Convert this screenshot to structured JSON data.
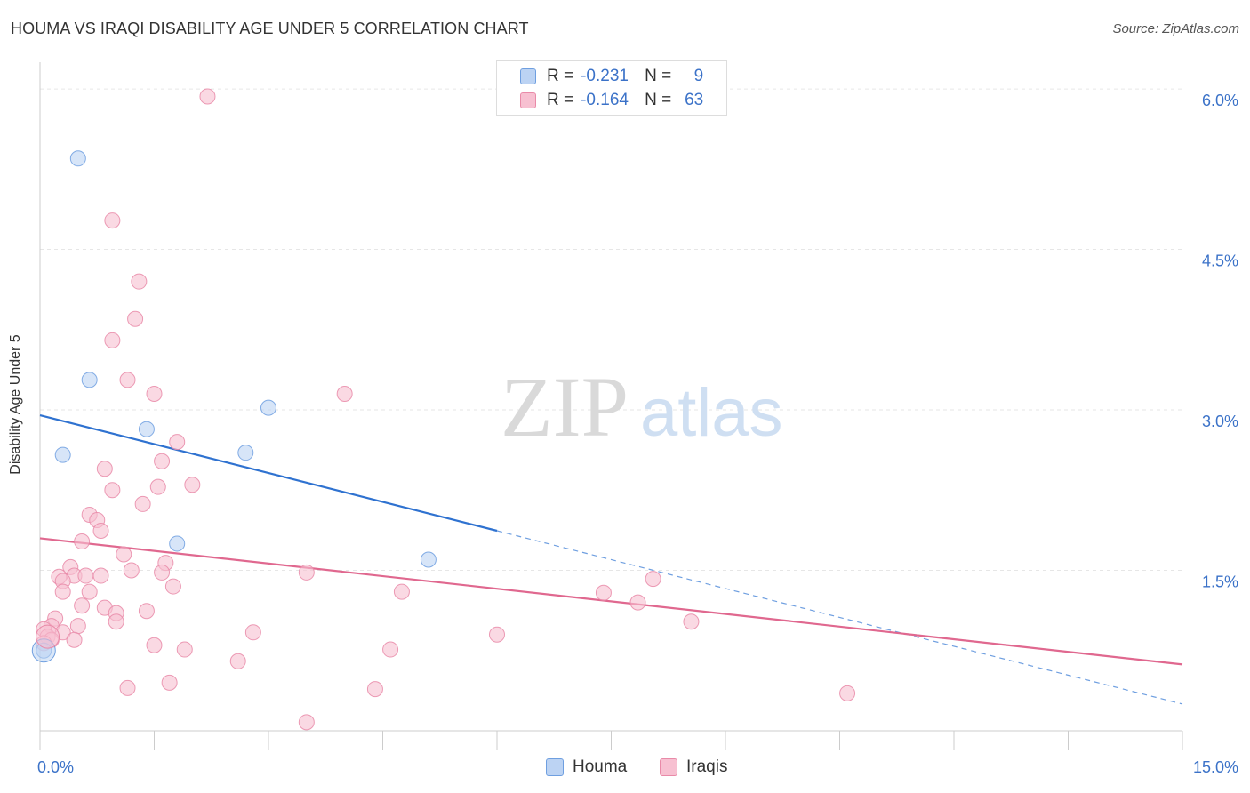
{
  "title": "HOUMA VS IRAQI DISABILITY AGE UNDER 5 CORRELATION CHART",
  "source": "Source: ZipAtlas.com",
  "watermark": {
    "zip": "ZIP",
    "atlas": "atlas"
  },
  "chart_data": {
    "type": "scatter",
    "ylabel": "Disability Age Under 5",
    "xlim": [
      0,
      15
    ],
    "ylim": [
      0,
      6.25
    ],
    "x_tick_labels": [
      "0.0%",
      "15.0%"
    ],
    "y_ticks": [
      {
        "value": 1.5,
        "label": "1.5%"
      },
      {
        "value": 3.0,
        "label": "3.0%"
      },
      {
        "value": 4.5,
        "label": "4.5%"
      },
      {
        "value": 6.0,
        "label": "6.0%"
      }
    ],
    "grid": true,
    "legend": [
      {
        "name": "Houma",
        "color": "#6f9fe0",
        "fill": "#bcd3f3",
        "r_label": "R =",
        "r": "-0.231",
        "n_label": "N =",
        "n": "9"
      },
      {
        "name": "Iraqis",
        "color": "#e98aa8",
        "fill": "#f7c0d1",
        "r_label": "R =",
        "r": "-0.164",
        "n_label": "N =",
        "n": "63"
      }
    ],
    "series": [
      {
        "name": "Houma",
        "points": [
          [
            0.5,
            5.35
          ],
          [
            0.65,
            3.28
          ],
          [
            0.3,
            2.58
          ],
          [
            1.4,
            2.82
          ],
          [
            3.0,
            3.02
          ],
          [
            2.7,
            2.6
          ],
          [
            1.8,
            1.75
          ],
          [
            5.1,
            1.6
          ],
          [
            0.05,
            0.75
          ]
        ],
        "trend": {
          "x0": 0,
          "y0": 2.95,
          "x1": 15,
          "y1": 0.25,
          "solid_until": 6
        }
      },
      {
        "name": "Iraqis",
        "points": [
          [
            2.2,
            5.93
          ],
          [
            0.95,
            4.77
          ],
          [
            1.3,
            4.2
          ],
          [
            1.25,
            3.85
          ],
          [
            0.95,
            3.65
          ],
          [
            1.15,
            3.28
          ],
          [
            1.5,
            3.15
          ],
          [
            4.0,
            3.15
          ],
          [
            1.8,
            2.7
          ],
          [
            1.6,
            2.52
          ],
          [
            0.85,
            2.45
          ],
          [
            2.0,
            2.3
          ],
          [
            1.55,
            2.28
          ],
          [
            0.95,
            2.25
          ],
          [
            1.35,
            2.12
          ],
          [
            0.65,
            2.02
          ],
          [
            0.75,
            1.97
          ],
          [
            0.8,
            1.87
          ],
          [
            0.55,
            1.77
          ],
          [
            1.1,
            1.65
          ],
          [
            0.4,
            1.53
          ],
          [
            1.65,
            1.57
          ],
          [
            1.2,
            1.5
          ],
          [
            1.6,
            1.48
          ],
          [
            3.5,
            1.48
          ],
          [
            0.25,
            1.44
          ],
          [
            0.45,
            1.45
          ],
          [
            0.6,
            1.45
          ],
          [
            0.8,
            1.45
          ],
          [
            0.3,
            1.4
          ],
          [
            1.75,
            1.35
          ],
          [
            0.3,
            1.3
          ],
          [
            0.65,
            1.3
          ],
          [
            4.75,
            1.3
          ],
          [
            7.4,
            1.29
          ],
          [
            8.05,
            1.42
          ],
          [
            7.85,
            1.2
          ],
          [
            0.55,
            1.17
          ],
          [
            0.85,
            1.15
          ],
          [
            1.4,
            1.12
          ],
          [
            1.0,
            1.1
          ],
          [
            0.2,
            1.05
          ],
          [
            1.0,
            1.02
          ],
          [
            8.55,
            1.02
          ],
          [
            0.5,
            0.98
          ],
          [
            0.15,
            0.98
          ],
          [
            0.05,
            0.95
          ],
          [
            0.3,
            0.92
          ],
          [
            2.8,
            0.92
          ],
          [
            6.0,
            0.9
          ],
          [
            0.1,
            0.88
          ],
          [
            0.15,
            0.85
          ],
          [
            0.05,
            0.82
          ],
          [
            0.45,
            0.85
          ],
          [
            1.5,
            0.8
          ],
          [
            1.9,
            0.76
          ],
          [
            4.6,
            0.76
          ],
          [
            2.6,
            0.65
          ],
          [
            1.7,
            0.45
          ],
          [
            1.15,
            0.4
          ],
          [
            4.4,
            0.39
          ],
          [
            10.6,
            0.35
          ],
          [
            3.5,
            0.08
          ]
        ],
        "trend": {
          "x0": 0,
          "y0": 1.8,
          "x1": 15,
          "y1": 0.62
        }
      }
    ]
  }
}
